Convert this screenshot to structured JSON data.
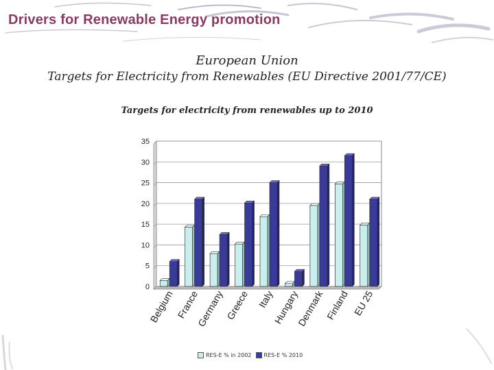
{
  "slide": {
    "title": "Drivers for Renewable Energy promotion",
    "heading_line1": "European Union",
    "heading_line2": "Targets for Electricity from Renewables  (EU Directive 2001/77/CE)"
  },
  "colors": {
    "title": "#8a3a62",
    "series_2002": "#c9eeee",
    "series_2010": "#3a3a9a",
    "decor": "#8c8ca8"
  },
  "chart_data": {
    "type": "bar",
    "title": "Targets  for electricity from renewables up to 2010",
    "xlabel": "",
    "ylabel": "",
    "categories": [
      "Belgium",
      "France",
      "Germany",
      "Greece",
      "Italy",
      "Hungary",
      "Denmark",
      "Finland",
      "EU 25"
    ],
    "series": [
      {
        "name": "RES-E % in 2002",
        "values": [
          1.4,
          14.3,
          7.9,
          10.2,
          16.8,
          0.7,
          19.5,
          24.7,
          14.8
        ]
      },
      {
        "name": "RES-E % 2010",
        "values": [
          6.0,
          21.0,
          12.5,
          20.1,
          25.0,
          3.6,
          29.0,
          31.5,
          21.0
        ]
      }
    ],
    "ylim": [
      0,
      35
    ],
    "yticks": [
      "0",
      "5",
      "10",
      "15",
      "20",
      "25",
      "30",
      "35"
    ],
    "grid": true,
    "legend_position": "bottom"
  }
}
